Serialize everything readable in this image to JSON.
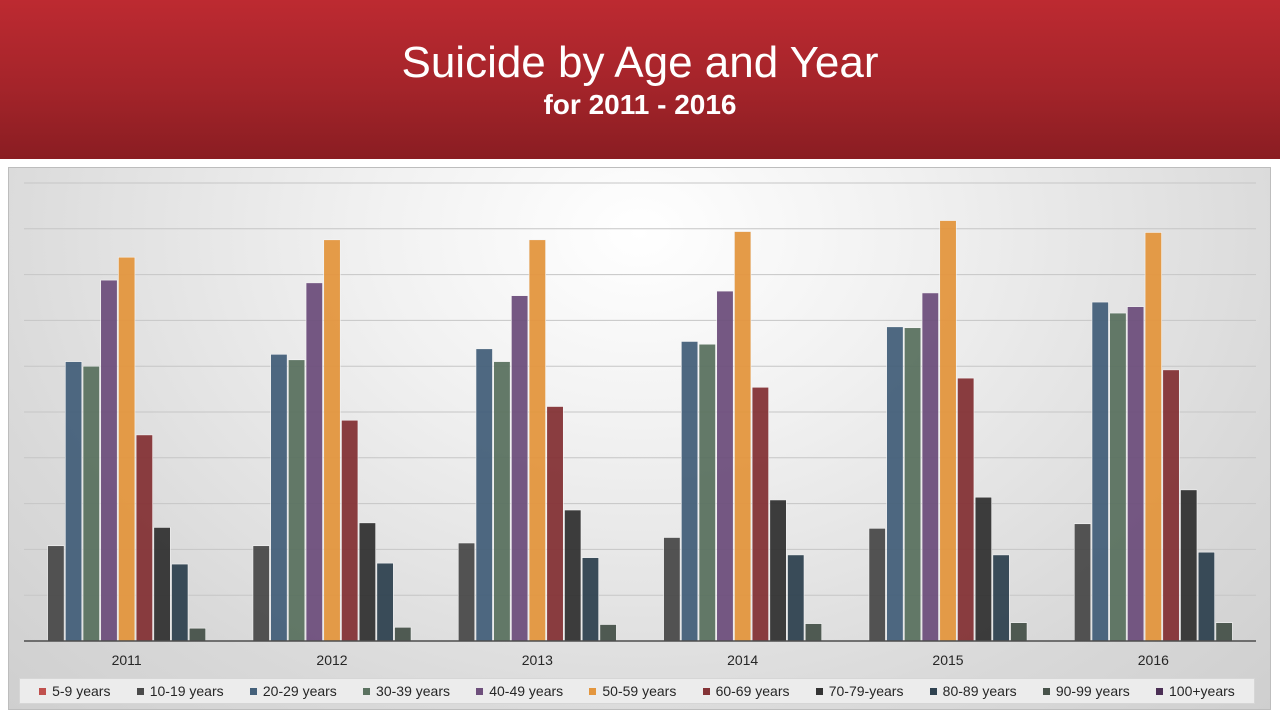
{
  "header": {
    "title": "Suicide by Age and Year",
    "subtitle": "for 2011 - 2016"
  },
  "chart_data": {
    "type": "bar",
    "title": "Suicide by Age and Year",
    "subtitle": "for 2011 - 2016",
    "xlabel": "",
    "ylabel": "",
    "categories": [
      "2011",
      "2012",
      "2013",
      "2014",
      "2015",
      "2016"
    ],
    "ylim": [
      0,
      500
    ],
    "ytick_step": 50,
    "y_tick_labels_shown": false,
    "grid": true,
    "legend_position": "bottom",
    "series": [
      {
        "name": "5-9 years",
        "color": "#c0504d",
        "values": [
          0,
          0,
          0,
          0,
          0,
          0
        ]
      },
      {
        "name": "10-19 years",
        "color": "#4a4a4a",
        "values": [
          104,
          104,
          107,
          113,
          123,
          128
        ]
      },
      {
        "name": "20-29 years",
        "color": "#44607a",
        "values": [
          305,
          313,
          319,
          327,
          343,
          370
        ]
      },
      {
        "name": "30-39 years",
        "color": "#5b7260",
        "values": [
          300,
          307,
          305,
          324,
          342,
          358
        ]
      },
      {
        "name": "40-49 years",
        "color": "#6e4f7c",
        "values": [
          394,
          391,
          377,
          382,
          380,
          365
        ]
      },
      {
        "name": "50-59 years",
        "color": "#e3963e",
        "values": [
          419,
          438,
          438,
          447,
          459,
          446
        ]
      },
      {
        "name": "60-69 years",
        "color": "#843336",
        "values": [
          225,
          241,
          256,
          277,
          287,
          296
        ]
      },
      {
        "name": "70-79-years",
        "color": "#333333",
        "values": [
          124,
          129,
          143,
          154,
          157,
          165
        ]
      },
      {
        "name": "80-89 years",
        "color": "#2f4250",
        "values": [
          84,
          85,
          91,
          94,
          94,
          97
        ]
      },
      {
        "name": "90-99 years",
        "color": "#47524a",
        "values": [
          14,
          15,
          18,
          19,
          20,
          20
        ]
      },
      {
        "name": "100+years",
        "color": "#4b2f55",
        "values": [
          0,
          0,
          0,
          0,
          0,
          0
        ]
      }
    ]
  }
}
